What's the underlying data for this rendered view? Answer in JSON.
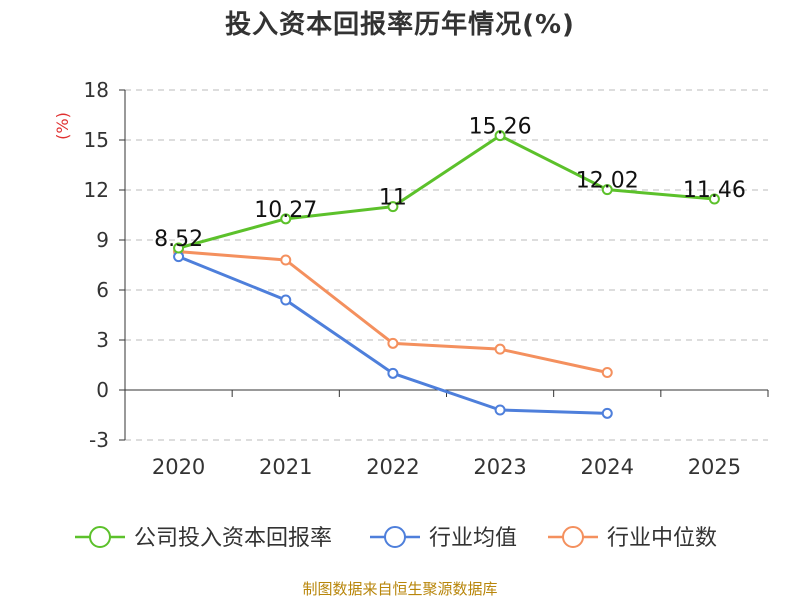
{
  "title": "投入资本回报率历年情况(%)",
  "source": "制图数据来自恒生聚源数据库",
  "chart_data": {
    "type": "line",
    "title": "投入资本回报率历年情况(%)",
    "ylabel": "(%)",
    "xlabel": "",
    "categories": [
      "2020",
      "2021",
      "2022",
      "2023",
      "2024",
      "2025"
    ],
    "ylim": [
      -3,
      18
    ],
    "yticks": [
      -3,
      0,
      3,
      6,
      9,
      12,
      15,
      18
    ],
    "grid": true,
    "legend_position": "bottom",
    "series": [
      {
        "name": "公司投入资本回报率",
        "color": "#5cc12b",
        "values": [
          8.52,
          10.27,
          11,
          15.26,
          12.02,
          11.46
        ],
        "labels": [
          "8.52",
          "10.27",
          "11",
          "15.26",
          "12.02",
          "11.46"
        ]
      },
      {
        "name": "行业均值",
        "color": "#4e7fdb",
        "values": [
          8.0,
          5.4,
          1.0,
          -1.2,
          -1.4,
          null
        ]
      },
      {
        "name": "行业中位数",
        "color": "#f4905e",
        "values": [
          8.3,
          7.8,
          2.8,
          2.45,
          1.05,
          null
        ]
      }
    ]
  }
}
